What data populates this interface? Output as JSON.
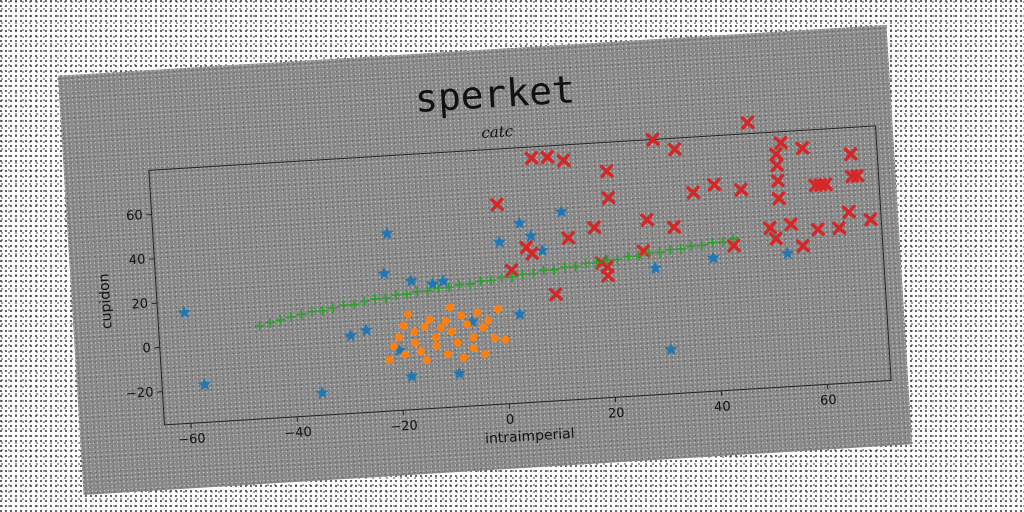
{
  "chart_data": {
    "type": "scatter",
    "title": "sperket",
    "subtitle": "catc",
    "xlabel": "intraimperial",
    "ylabel": "cupidon",
    "xlim": [
      -65,
      72
    ],
    "ylim": [
      -35,
      80
    ],
    "xticks": [
      -60,
      -40,
      -20,
      0,
      20,
      40,
      60
    ],
    "yticks": [
      -20,
      0,
      20,
      40,
      60
    ],
    "grid": false,
    "legend": "none",
    "series": [
      {
        "marker": "star",
        "color": "#1f77b4",
        "points": [
          [
            -60,
            15
          ],
          [
            -57,
            -18
          ],
          [
            -35,
            -25
          ],
          [
            -29,
            0
          ],
          [
            -26,
            2
          ],
          [
            -22,
            27
          ],
          [
            -21,
            45
          ],
          [
            -20,
            -8
          ],
          [
            -18,
            -20
          ],
          [
            -17,
            23
          ],
          [
            -13,
            21
          ],
          [
            -11,
            22
          ],
          [
            -9,
            -20
          ],
          [
            -6,
            3
          ],
          [
            0,
            38
          ],
          [
            3,
            5
          ],
          [
            4,
            46
          ],
          [
            6,
            40
          ],
          [
            8,
            33
          ],
          [
            12,
            50
          ],
          [
            29,
            22
          ],
          [
            31,
            -15
          ],
          [
            40,
            25
          ],
          [
            54,
            25
          ]
        ]
      },
      {
        "marker": "circle",
        "color": "#ff7f0e",
        "points": [
          [
            -22,
            -12
          ],
          [
            -21,
            -6
          ],
          [
            -20,
            -2
          ],
          [
            -19,
            3
          ],
          [
            -19,
            -10
          ],
          [
            -18,
            8
          ],
          [
            -17,
            0
          ],
          [
            -17,
            -5
          ],
          [
            -16,
            -9
          ],
          [
            -15,
            2
          ],
          [
            -15,
            -13
          ],
          [
            -14,
            5
          ],
          [
            -13,
            -3
          ],
          [
            -13,
            -7
          ],
          [
            -12,
            1
          ],
          [
            -11,
            -11
          ],
          [
            -11,
            4
          ],
          [
            -10,
            10
          ],
          [
            -10,
            -1
          ],
          [
            -9,
            -6
          ],
          [
            -8,
            6
          ],
          [
            -8,
            -13
          ],
          [
            -7,
            2
          ],
          [
            -6,
            -4
          ],
          [
            -6,
            -9
          ],
          [
            -5,
            7
          ],
          [
            -4,
            0
          ],
          [
            -4,
            -12
          ],
          [
            -3,
            3
          ],
          [
            -2,
            -5
          ],
          [
            -1,
            8
          ],
          [
            0,
            -6
          ]
        ]
      },
      {
        "marker": "x",
        "color": "#d62728",
        "points": [
          [
            0,
            55
          ],
          [
            2,
            25
          ],
          [
            5,
            35
          ],
          [
            6,
            32
          ],
          [
            7,
            75
          ],
          [
            10,
            75
          ],
          [
            10,
            13
          ],
          [
            13,
            73
          ],
          [
            13,
            38
          ],
          [
            18,
            42
          ],
          [
            19,
            26
          ],
          [
            20,
            24
          ],
          [
            20,
            20
          ],
          [
            21,
            55
          ],
          [
            21,
            67
          ],
          [
            27,
            30
          ],
          [
            28,
            44
          ],
          [
            30,
            80
          ],
          [
            33,
            40
          ],
          [
            34,
            75
          ],
          [
            37,
            55
          ],
          [
            41,
            58
          ],
          [
            44,
            30
          ],
          [
            46,
            55
          ],
          [
            48,
            85
          ],
          [
            51,
            37
          ],
          [
            52,
            32
          ],
          [
            53,
            58
          ],
          [
            53,
            50
          ],
          [
            53,
            65
          ],
          [
            53,
            70
          ],
          [
            54,
            75
          ],
          [
            55,
            38
          ],
          [
            57,
            28
          ],
          [
            58,
            72
          ],
          [
            60,
            35
          ],
          [
            60,
            55
          ],
          [
            61,
            55
          ],
          [
            62,
            55
          ],
          [
            64,
            35
          ],
          [
            66,
            42
          ],
          [
            67,
            68
          ],
          [
            67,
            58
          ],
          [
            68,
            58
          ],
          [
            70,
            38
          ]
        ]
      },
      {
        "marker": "plus",
        "color": "#2ca02c",
        "points": [
          [
            -46,
            7
          ],
          [
            -44,
            8
          ],
          [
            -42,
            9
          ],
          [
            -40,
            10
          ],
          [
            -38,
            11
          ],
          [
            -36,
            12
          ],
          [
            -34,
            12
          ],
          [
            -32,
            13
          ],
          [
            -30,
            14
          ],
          [
            -28,
            14
          ],
          [
            -26,
            15
          ],
          [
            -24,
            16
          ],
          [
            -22,
            16
          ],
          [
            -20,
            17
          ],
          [
            -18,
            17
          ],
          [
            -16,
            18
          ],
          [
            -14,
            18
          ],
          [
            -12,
            19
          ],
          [
            -10,
            19
          ],
          [
            -8,
            20
          ],
          [
            -6,
            20
          ],
          [
            -4,
            21
          ],
          [
            -2,
            21
          ],
          [
            0,
            22
          ],
          [
            2,
            22
          ],
          [
            4,
            23
          ],
          [
            6,
            23
          ],
          [
            8,
            24
          ],
          [
            10,
            24
          ],
          [
            12,
            25
          ],
          [
            14,
            25
          ],
          [
            16,
            26
          ],
          [
            18,
            26
          ],
          [
            20,
            27
          ],
          [
            22,
            27
          ],
          [
            24,
            28
          ],
          [
            26,
            28
          ],
          [
            28,
            29
          ],
          [
            30,
            29
          ],
          [
            32,
            30
          ],
          [
            34,
            30
          ],
          [
            36,
            31
          ],
          [
            38,
            31
          ],
          [
            40,
            32
          ],
          [
            42,
            32
          ],
          [
            44,
            33
          ]
        ]
      }
    ]
  }
}
